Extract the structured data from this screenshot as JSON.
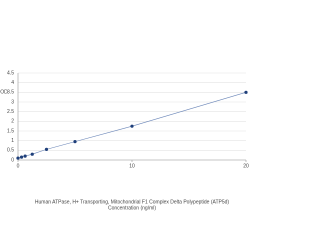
{
  "chart_data": {
    "type": "scatter",
    "title": "Human ATPase, H+ Transporting, Mitochondrial F1 Complex Delta Polypeptide (ATP5d)",
    "x_label": "Concentration (ng/ml)",
    "y_label": "OD",
    "x": [
      0,
      0.3125,
      0.625,
      1.25,
      2.5,
      5,
      10,
      20
    ],
    "values": [
      0.1,
      0.15,
      0.2,
      0.3,
      0.55,
      0.95,
      1.75,
      3.5
    ],
    "color": "#1f3f7a",
    "line_color": "#6b86b8",
    "xlim": [
      0,
      20
    ],
    "xticks": [
      0,
      10,
      20
    ],
    "ylim": [
      0,
      4.5
    ],
    "yticks": [
      0,
      0.5,
      1,
      1.5,
      2,
      2.5,
      3,
      3.5,
      4,
      4.5
    ],
    "grid": true
  }
}
